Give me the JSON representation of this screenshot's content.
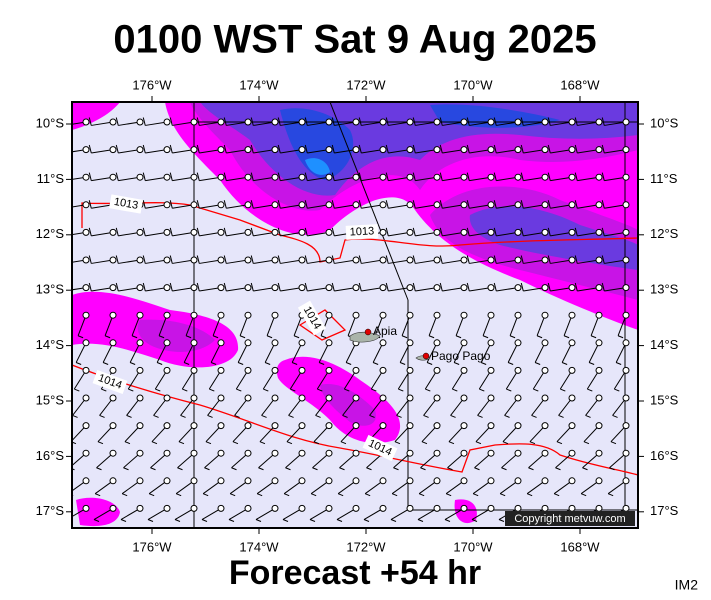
{
  "header": {
    "title": "0100 WST Sat 9 Aug 2025"
  },
  "longitude_labels": [
    "176°W",
    "174°W",
    "172°W",
    "170°W",
    "168°W"
  ],
  "latitude_labels": [
    "10°S",
    "11°S",
    "12°S",
    "13°S",
    "14°S",
    "15°S",
    "16°S",
    "17°S"
  ],
  "places": [
    "Apia",
    "Pago Pago"
  ],
  "isobar_labels": [
    "1013",
    "1013",
    "1014",
    "1014",
    "1014"
  ],
  "copyright": "Copyright metvuw.com",
  "footer": {
    "forecast": "Forecast +54 hr",
    "code": "IM2"
  }
}
